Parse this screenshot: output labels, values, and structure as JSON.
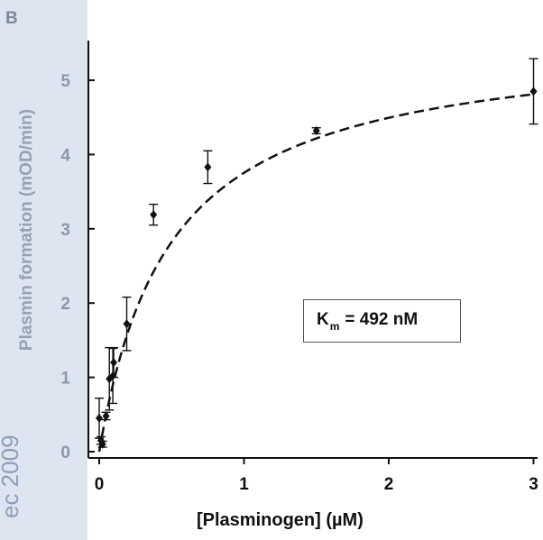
{
  "panel_label": "B",
  "watermark": "ec 2009",
  "annotation": {
    "k": "K",
    "sub": "m",
    "rest": "= 492 nM"
  },
  "colors": {
    "sidebar": "#dde5f0",
    "axis": "#111111",
    "line": "#111111"
  },
  "chart_data": {
    "type": "scatter",
    "title": "",
    "xlabel": "[Plasminogen] (µM)",
    "ylabel": "Plasmin formation (mOD/min)",
    "xlim": [
      0,
      3
    ],
    "ylim": [
      0,
      5.5
    ],
    "x_ticks": [
      0,
      1,
      2,
      3
    ],
    "y_ticks": [
      0,
      1,
      2,
      3,
      4,
      5
    ],
    "grid": false,
    "series": [
      {
        "points": [
          {
            "x": 0.0,
            "y": 0.45,
            "err": 0.27
          },
          {
            "x": 0.012,
            "y": 0.15,
            "err": 0.05
          },
          {
            "x": 0.023,
            "y": 0.1,
            "err": 0.04
          },
          {
            "x": 0.047,
            "y": 0.48,
            "err": 0.05
          },
          {
            "x": 0.07,
            "y": 0.98,
            "err": 0.42
          },
          {
            "x": 0.094,
            "y": 1.02,
            "err": 0.37
          },
          {
            "x": 0.1,
            "y": 1.2,
            "err": 0.2
          },
          {
            "x": 0.19,
            "y": 1.72,
            "err": 0.36
          },
          {
            "x": 0.375,
            "y": 3.19,
            "err": 0.14
          },
          {
            "x": 0.75,
            "y": 3.83,
            "err": 0.22
          },
          {
            "x": 1.5,
            "y": 4.32,
            "err": 0.04
          },
          {
            "x": 3.0,
            "y": 4.85,
            "err": 0.44
          }
        ]
      }
    ],
    "fit": {
      "type": "michaelis-menten",
      "vmax": 5.6,
      "km": 0.492,
      "x_range": [
        0,
        3
      ],
      "style": "dashed"
    }
  }
}
